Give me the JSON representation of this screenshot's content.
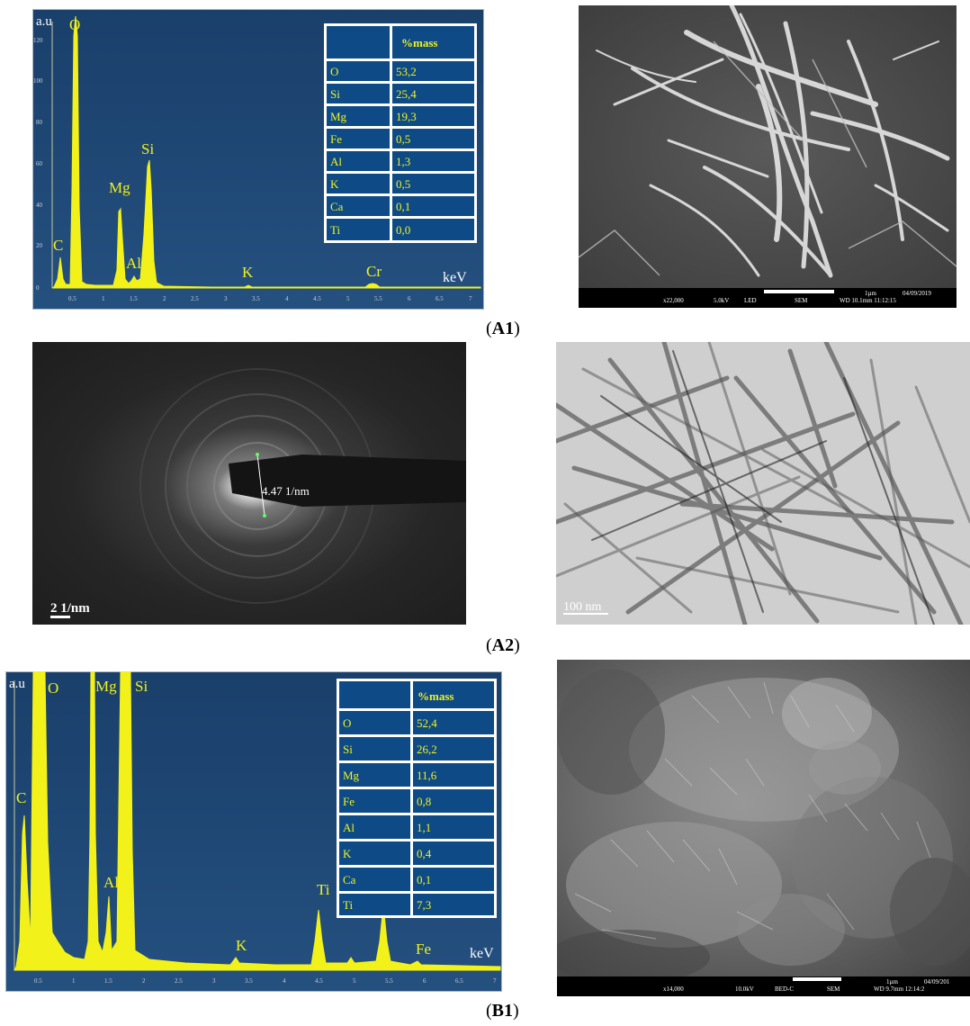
{
  "figure": {
    "captions": {
      "a1": {
        "open": "(",
        "label": "A1",
        "close": ")"
      },
      "a2": {
        "open": "(",
        "label": "A2",
        "close": ")"
      },
      "b1": {
        "open": "(",
        "label": "B1",
        "close": ")"
      }
    }
  },
  "edx_a1": {
    "y_unit": "a.u",
    "x_unit": "keV",
    "y_ticks": [
      "0",
      "20",
      "40",
      "60",
      "80",
      "100",
      "120"
    ],
    "x_ticks": [
      "0.5",
      "1",
      "1.5",
      "2",
      "2.5",
      "3",
      "3.5",
      "4",
      "4.5",
      "5",
      "5.5",
      "6",
      "6.5",
      "7"
    ],
    "peak_labels": [
      "C",
      "O",
      "Mg",
      "Si",
      "Al",
      "K",
      "Cr"
    ],
    "table_header": "%mass",
    "table_rows": [
      {
        "el": "O",
        "val": "53,2"
      },
      {
        "el": "Si",
        "val": "25,4"
      },
      {
        "el": "Mg",
        "val": "19,3"
      },
      {
        "el": "Fe",
        "val": "0,5"
      },
      {
        "el": "Al",
        "val": "1,3"
      },
      {
        "el": "K",
        "val": "0,5"
      },
      {
        "el": "Ca",
        "val": "0,1"
      },
      {
        "el": "Ti",
        "val": "0,0"
      }
    ]
  },
  "edx_b1": {
    "y_unit": "a.u",
    "x_unit": "keV",
    "x_ticks": [
      "0.5",
      "1",
      "1.5",
      "2",
      "2.5",
      "3",
      "3.5",
      "4",
      "4.5",
      "5",
      "5.5",
      "6",
      "6.5",
      "7"
    ],
    "peak_labels": [
      "C",
      "O",
      "Mg",
      "Si",
      "Al",
      "K",
      "Ti",
      "C",
      "Fe"
    ],
    "table_header": "%mass",
    "table_rows": [
      {
        "el": "O",
        "val": "52,4"
      },
      {
        "el": "Si",
        "val": "26,2"
      },
      {
        "el": "Mg",
        "val": "11,6"
      },
      {
        "el": "Fe",
        "val": "0,8"
      },
      {
        "el": "Al",
        "val": "1,1"
      },
      {
        "el": "K",
        "val": "0,4"
      },
      {
        "el": "Ca",
        "val": "0,1"
      },
      {
        "el": "Ti",
        "val": "7,3"
      }
    ]
  },
  "sem_a1": {
    "info": [
      "x22,000",
      "5.0kV",
      "LED",
      "SEM",
      "WD 10.1mm 11:12:15"
    ],
    "scale_label": "1µm",
    "date": "04/09/2019"
  },
  "saed_a2": {
    "measurement": "4.47 1/nm",
    "scale_bar": "2 1/nm"
  },
  "tem_a2": {
    "scale_bar": "100 nm"
  },
  "sem_b1": {
    "info": [
      "x14,000",
      "10.0kV",
      "BED-C",
      "SEM",
      "WD 9.7mm 12:14:2"
    ],
    "scale_label": "1µm",
    "date": "04/09/201"
  },
  "colors": {
    "edx_bg": "#1f4a78",
    "spectrum": "#f2f21a",
    "table_cell": "#0d4a86"
  }
}
